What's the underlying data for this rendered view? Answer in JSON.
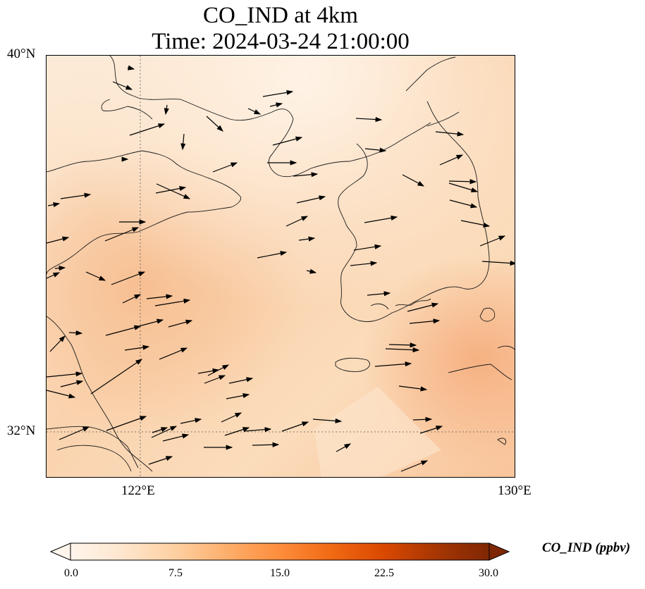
{
  "title": {
    "line1": "CO_IND at 4km",
    "line2": "Time: 2024-03-24 21:00:00"
  },
  "axes": {
    "lat_ticks": [
      "40°N",
      "32°N"
    ],
    "lon_ticks": [
      "122°E",
      "130°E"
    ],
    "extent": {
      "lon_min": 120,
      "lon_max": 130,
      "lat_min": 31,
      "lat_max": 40
    }
  },
  "colorbar": {
    "label": "CO_IND (ppbv)",
    "ticks": [
      "0.0",
      "7.5",
      "15.0",
      "22.5",
      "30.0"
    ],
    "vmin": 0,
    "vmax": 30,
    "extend": "both",
    "colormap": [
      "#fff5eb",
      "#fee6ce",
      "#fdd0a2",
      "#fdae6b",
      "#fd8d3c",
      "#f16913",
      "#d94801",
      "#a63603",
      "#7f2704"
    ]
  },
  "field": {
    "typical_range_ppbv": [
      2,
      8
    ],
    "description_colors": {
      "low": "#fdecd9",
      "mid": "#fbd7b0",
      "high": "#f9b98a"
    }
  },
  "wind_vectors": "eastward to east-northeastward flow over the domain"
}
